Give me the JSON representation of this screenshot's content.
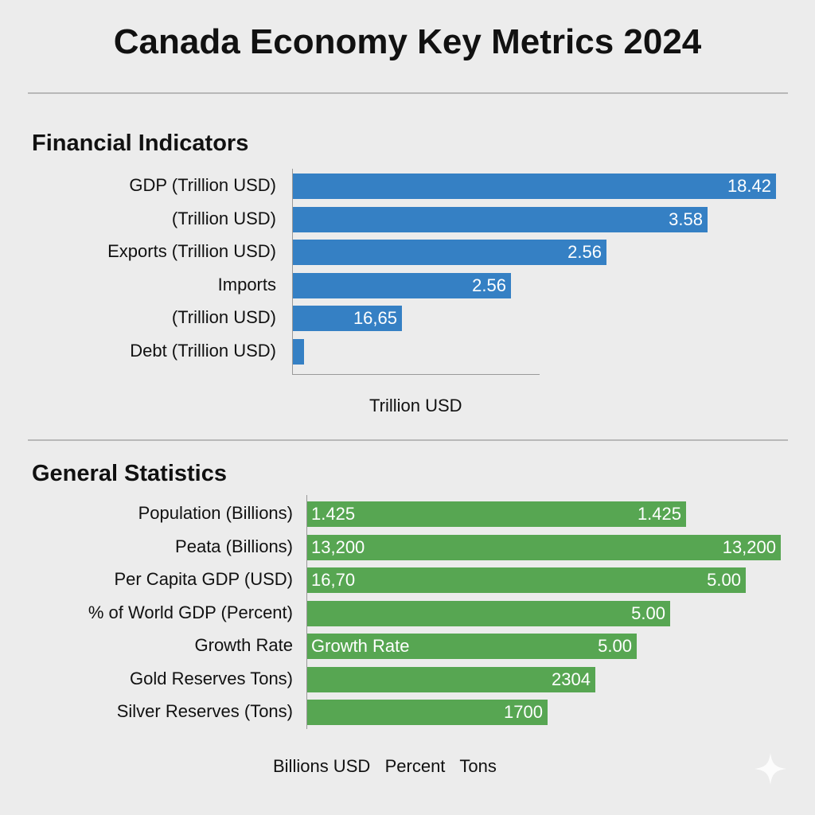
{
  "title": "Canada Economy Key Metrics 2024",
  "colors": {
    "financial_bar": "#3580c4",
    "general_bar": "#57a652",
    "background": "#ececec"
  },
  "chart_data": [
    {
      "type": "bar",
      "orientation": "horizontal",
      "title": "Financial Indicators",
      "xlabel": "Trillion USD",
      "categories": [
        "GDP (Trillion USD)",
        "(Trillion USD)",
        "Exports (Trillion USD)",
        "Imports",
        "(Trillion USD)",
        "Debt (Trillion USD)"
      ],
      "value_labels": [
        "18.42",
        "3.58",
        "2.56",
        "2.56",
        "16,65",
        ""
      ],
      "bar_fraction": [
        1.0,
        0.858,
        0.649,
        0.451,
        0.226,
        0.023
      ]
    },
    {
      "type": "bar",
      "orientation": "horizontal",
      "title": "General Statistics",
      "xlabel": "Billions USD   Percent   Tons",
      "categories": [
        "Population (Billions)",
        "Peata (Billions)",
        "Per Capita GDP (USD)",
        "% of World GDP (Percent)",
        "Growth Rate",
        "Gold Reserves Tons)",
        "Silver Reserves (Tons)"
      ],
      "inner_labels": [
        "1.425",
        "13,200",
        "16,70",
        "",
        "Growth Rate",
        "",
        ""
      ],
      "value_labels": [
        "1.425",
        "13,200",
        "5.00",
        "5.00",
        "5.00",
        "2304",
        "1700"
      ],
      "bar_fraction": [
        0.8,
        1.0,
        0.926,
        0.767,
        0.695,
        0.609,
        0.508
      ]
    }
  ]
}
